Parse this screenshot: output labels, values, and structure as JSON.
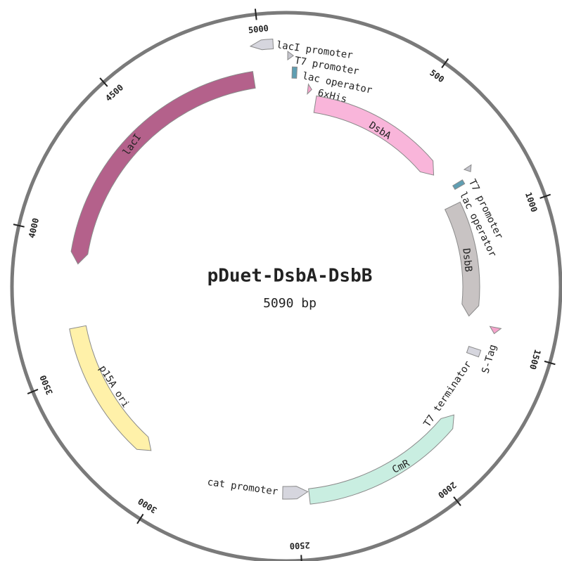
{
  "title": "pDuet-DsbA-DsbB",
  "size": {
    "value": 5090,
    "label": "5090 bp"
  },
  "ticks": [
    500,
    1000,
    1500,
    2000,
    2500,
    3000,
    3500,
    4000,
    4500,
    5000
  ],
  "features": [
    {
      "name": "lacI promoter",
      "start": 4970,
      "end": 5046,
      "direction": "reverse",
      "color": "#d6d6de"
    },
    {
      "name": "T7 promoter",
      "start": 5,
      "end": 25,
      "direction": "forward",
      "color": "#c4c4cc"
    },
    {
      "name": "lac operator",
      "start": 22,
      "end": 40,
      "direction": "none",
      "color": "#5f9eb2"
    },
    {
      "name": "6xHis",
      "start": 88,
      "end": 104,
      "direction": "forward",
      "color": "#f5a3cb"
    },
    {
      "name": "DsbA",
      "start": 127,
      "end": 747,
      "direction": "forward",
      "color": "#f9b5da"
    },
    {
      "name": "lacI",
      "start": 3906,
      "end": 4965,
      "direction": "reverse",
      "color": "#b4618b"
    },
    {
      "name": "T7 promoter",
      "start": 800,
      "end": 820,
      "direction": "forward",
      "color": "#c4c4cc"
    },
    {
      "name": "lac operator",
      "start": 830,
      "end": 848,
      "direction": "none",
      "color": "#5f9eb2"
    },
    {
      "name": "DsbB",
      "start": 905,
      "end": 1401,
      "direction": "forward",
      "color": "#c8c3c3"
    },
    {
      "name": "S-Tag",
      "start": 1428,
      "end": 1452,
      "direction": "forward",
      "color": "#f5a3cb"
    },
    {
      "name": "T7 terminator",
      "start": 1528,
      "end": 1556,
      "direction": "none",
      "color": "#d6d6de"
    },
    {
      "name": "CmR",
      "start": 1801,
      "end": 2456,
      "direction": "reverse",
      "color": "#c9eee1"
    },
    {
      "name": "cat promoter",
      "start": 2460,
      "end": 2559,
      "direction": "reverse",
      "color": "#d6d6de"
    },
    {
      "name": "p15A ori",
      "start": 3104,
      "end": 3662,
      "direction": "reverse",
      "color": "#fff1a9"
    }
  ]
}
